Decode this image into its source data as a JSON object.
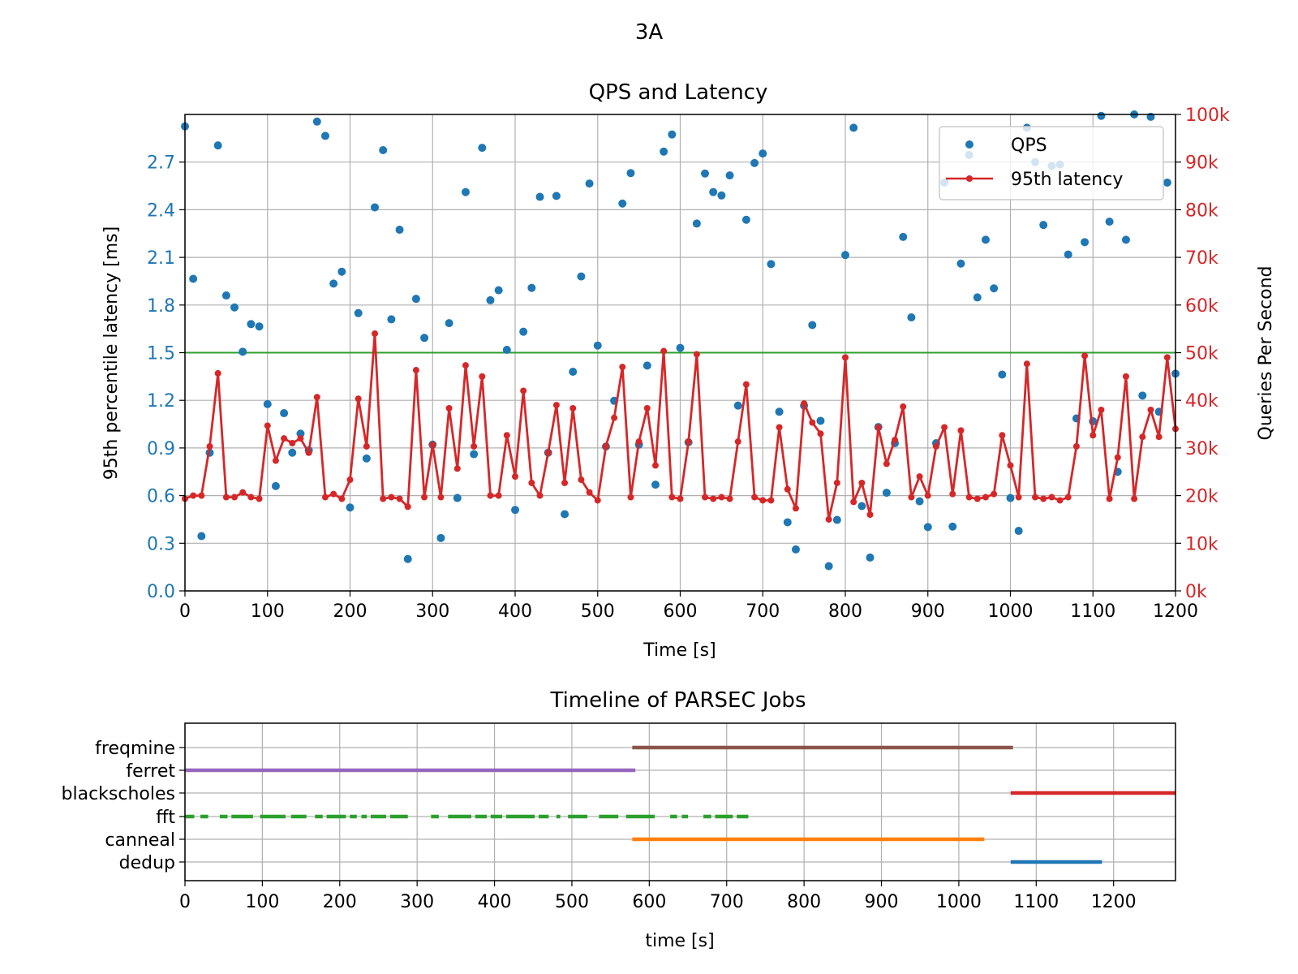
{
  "figure_title": "3A",
  "chart_data": [
    {
      "type": "scatter",
      "title": "QPS and Latency",
      "xlabel": "Time [s]",
      "ylabel_left": "95th percentile latency [ms]",
      "ylabel_right": "Queries Per Second",
      "xlim": [
        0,
        1200
      ],
      "ylim_left": [
        0,
        3.0
      ],
      "ylim_right": [
        0,
        100000
      ],
      "x_ticks": [
        "0",
        "100",
        "200",
        "300",
        "400",
        "500",
        "600",
        "700",
        "800",
        "900",
        "1000",
        "1100",
        "1200"
      ],
      "y_left_ticks": [
        "0.0",
        "0.3",
        "0.6",
        "0.9",
        "1.2",
        "1.5",
        "1.8",
        "2.1",
        "2.4",
        "2.7"
      ],
      "y_right_ticks": [
        "0k",
        "10k",
        "20k",
        "30k",
        "40k",
        "50k",
        "60k",
        "70k",
        "80k",
        "90k",
        "100k"
      ],
      "grid": true,
      "legend_position": "top-right",
      "slo_line": {
        "y": 1.5,
        "color": "#2ca02c"
      },
      "series": [
        {
          "name": "QPS",
          "axis": "right",
          "kind": "points",
          "color": "#1f77b4",
          "x": [
            0,
            10,
            20,
            30,
            40,
            50,
            60,
            70,
            80,
            90,
            100,
            110,
            120,
            130,
            140,
            150,
            160,
            170,
            180,
            190,
            200,
            210,
            220,
            230,
            240,
            250,
            260,
            270,
            280,
            290,
            300,
            310,
            320,
            330,
            340,
            350,
            360,
            370,
            380,
            390,
            400,
            410,
            420,
            430,
            440,
            450,
            460,
            470,
            480,
            490,
            500,
            510,
            520,
            530,
            540,
            550,
            560,
            570,
            580,
            590,
            600,
            610,
            620,
            630,
            640,
            650,
            660,
            670,
            680,
            690,
            700,
            710,
            720,
            730,
            740,
            750,
            760,
            770,
            780,
            790,
            800,
            810,
            820,
            830,
            840,
            850,
            860,
            870,
            880,
            890,
            900,
            910,
            920,
            930,
            940,
            950,
            960,
            970,
            980,
            990,
            1000,
            1010,
            1020,
            1030,
            1040,
            1050,
            1060,
            1070,
            1080,
            1090,
            1100,
            1110,
            1120,
            1130,
            1140,
            1150,
            1160,
            1170,
            1180,
            1190,
            1200
          ],
          "y": [
            97500,
            65500,
            11500,
            29000,
            93500,
            62000,
            59500,
            50200,
            56000,
            55500,
            39200,
            22000,
            37300,
            29000,
            33000,
            29500,
            98500,
            95500,
            64500,
            67000,
            17500,
            58300,
            27800,
            80500,
            92500,
            57000,
            75800,
            6700,
            61300,
            53100,
            30700,
            11100,
            56200,
            19500,
            83700,
            28700,
            93000,
            61000,
            63100,
            50600,
            17000,
            54400,
            63600,
            82700,
            29000,
            82900,
            16100,
            46000,
            66000,
            85500,
            51500,
            30300,
            39900,
            81300,
            87700,
            30700,
            47300,
            22300,
            92200,
            95800,
            51000,
            31200,
            77100,
            87600,
            83700,
            83000,
            87200,
            38900,
            77900,
            89800,
            91800,
            68600,
            37600,
            14400,
            8700,
            38900,
            55800,
            35700,
            5200,
            14900,
            70500,
            97200,
            17800,
            7000,
            34400,
            20600,
            31000,
            74300,
            57400,
            18800,
            13400,
            31000,
            85700,
            13500,
            68700,
            91500,
            61600,
            73700,
            63500,
            45400,
            19500,
            12600,
            97200,
            90000,
            76800,
            89200,
            89500,
            70600,
            36200,
            73200,
            35600,
            99700,
            77500,
            25000,
            73700,
            100000,
            41000,
            99500,
            37600,
            85700,
            45600
          ]
        },
        {
          "name": "95th latency",
          "axis": "left",
          "kind": "line",
          "color": "#d62728",
          "x": [
            0,
            10,
            20,
            30,
            40,
            50,
            60,
            70,
            80,
            90,
            100,
            110,
            120,
            130,
            140,
            150,
            160,
            170,
            180,
            190,
            200,
            210,
            220,
            230,
            240,
            250,
            260,
            270,
            280,
            290,
            300,
            310,
            320,
            330,
            340,
            350,
            360,
            370,
            380,
            390,
            400,
            410,
            420,
            430,
            440,
            450,
            460,
            470,
            480,
            490,
            500,
            510,
            520,
            530,
            540,
            550,
            560,
            570,
            580,
            590,
            600,
            610,
            620,
            630,
            640,
            650,
            660,
            670,
            680,
            690,
            700,
            710,
            720,
            730,
            740,
            750,
            760,
            770,
            780,
            790,
            800,
            810,
            820,
            830,
            840,
            850,
            860,
            870,
            880,
            890,
            900,
            910,
            920,
            930,
            940,
            950,
            960,
            970,
            980,
            990,
            1000,
            1010,
            1020,
            1030,
            1040,
            1050,
            1060,
            1070,
            1080,
            1090,
            1100,
            1110,
            1120,
            1130,
            1140,
            1150,
            1160,
            1170,
            1180,
            1190,
            1200
          ],
          "y": [
            0.58,
            0.6,
            0.6,
            0.91,
            1.37,
            0.59,
            0.59,
            0.62,
            0.59,
            0.58,
            1.04,
            0.82,
            0.96,
            0.93,
            0.96,
            0.87,
            1.22,
            0.59,
            0.61,
            0.58,
            0.7,
            1.21,
            0.91,
            1.62,
            0.58,
            0.59,
            0.58,
            0.53,
            1.39,
            0.59,
            0.92,
            0.59,
            1.15,
            0.77,
            1.42,
            0.91,
            1.35,
            0.6,
            0.6,
            0.98,
            0.72,
            1.26,
            0.68,
            0.6,
            0.87,
            1.17,
            0.68,
            1.15,
            0.7,
            0.62,
            0.57,
            0.91,
            1.09,
            1.41,
            0.59,
            0.94,
            1.15,
            0.79,
            1.51,
            0.59,
            0.58,
            0.94,
            1.49,
            0.59,
            0.58,
            0.59,
            0.58,
            0.94,
            1.3,
            0.59,
            0.57,
            0.57,
            1.03,
            0.64,
            0.52,
            1.18,
            1.06,
            0.99,
            0.45,
            0.68,
            1.47,
            0.56,
            0.68,
            0.48,
            1.03,
            0.8,
            0.95,
            1.16,
            0.59,
            0.72,
            0.6,
            0.91,
            1.03,
            0.61,
            1.01,
            0.59,
            0.58,
            0.59,
            0.61,
            0.98,
            0.79,
            0.59,
            1.43,
            0.59,
            0.58,
            0.59,
            0.57,
            0.59,
            0.91,
            1.48,
            0.98,
            1.14,
            0.58,
            0.84,
            1.35,
            0.58,
            0.97,
            1.14,
            0.97,
            1.47,
            1.02
          ]
        }
      ]
    },
    {
      "type": "timeline",
      "title": "Timeline of PARSEC Jobs",
      "xlabel": "time [s]",
      "xlim": [
        0,
        1280
      ],
      "x_ticks": [
        "0",
        "100",
        "200",
        "300",
        "400",
        "500",
        "600",
        "700",
        "800",
        "900",
        "1000",
        "1100",
        "1200"
      ],
      "grid": true,
      "jobs": [
        {
          "name": "freqmine",
          "color": "#8c564b",
          "segments": [
            [
              578,
              1070
            ]
          ]
        },
        {
          "name": "ferret",
          "color": "#9467bd",
          "segments": [
            [
              0,
              582
            ]
          ]
        },
        {
          "name": "blackscholes",
          "color": "#d62728",
          "segments": [
            [
              1067,
              1280
            ]
          ]
        },
        {
          "name": "fft",
          "color": "#2ca02c",
          "segments": [
            [
              0,
              12
            ],
            [
              20,
              30
            ],
            [
              45,
              55
            ],
            [
              60,
              88
            ],
            [
              97,
              130
            ],
            [
              137,
              157
            ],
            [
              168,
              178
            ],
            [
              183,
              208
            ],
            [
              213,
              222
            ],
            [
              228,
              235
            ],
            [
              240,
              260
            ],
            [
              265,
              288
            ],
            [
              318,
              328
            ],
            [
              340,
              370
            ],
            [
              375,
              390
            ],
            [
              395,
              410
            ],
            [
              415,
              452
            ],
            [
              457,
              470
            ],
            [
              480,
              485
            ],
            [
              495,
              520
            ],
            [
              535,
              560
            ],
            [
              570,
              607
            ],
            [
              627,
              636
            ],
            [
              642,
              650
            ],
            [
              670,
              680
            ],
            [
              685,
              708
            ],
            [
              713,
              728
            ]
          ]
        },
        {
          "name": "canneal",
          "color": "#ff7f0e",
          "segments": [
            [
              578,
              1033
            ]
          ]
        },
        {
          "name": "dedup",
          "color": "#1f77b4",
          "segments": [
            [
              1067,
              1185
            ]
          ]
        }
      ]
    }
  ]
}
